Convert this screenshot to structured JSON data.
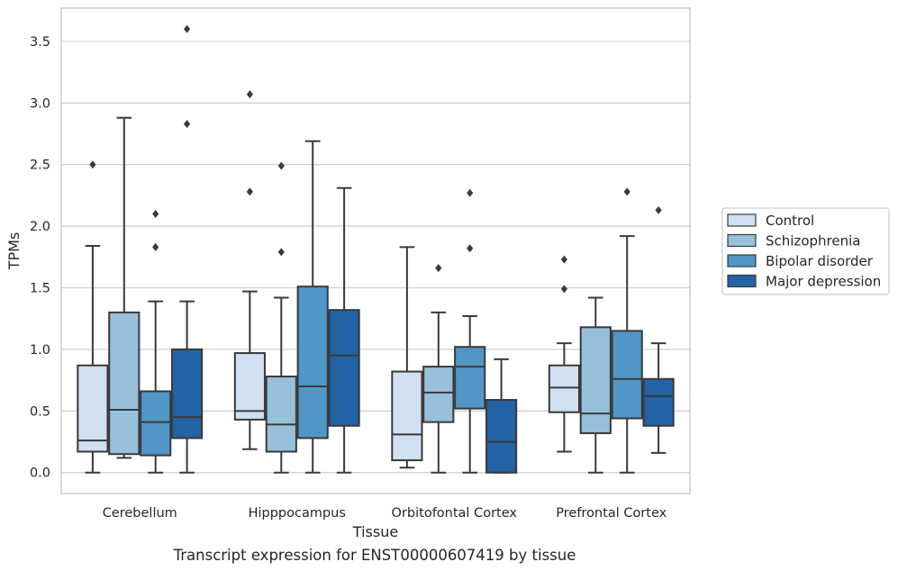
{
  "chart_data": {
    "type": "box",
    "xlabel": "Tissue",
    "ylabel": "TPMs",
    "caption": "Transcript expression for ENST00000607419 by tissue",
    "ylim": [
      -0.17,
      3.77
    ],
    "yticks": [
      "0.0",
      "0.5",
      "1.0",
      "1.5",
      "2.0",
      "2.5",
      "3.0",
      "3.5"
    ],
    "grid": "horizontal",
    "legend_position": "right",
    "categories": [
      "Cerebellum",
      "Hipppocampus",
      "Orbitofontal Cortex",
      "Prefrontal Cortex"
    ],
    "series": [
      {
        "name": "Control",
        "color": "#d1e0f0",
        "boxes": [
          {
            "whislo": 0.0,
            "q1": 0.17,
            "med": 0.26,
            "q3": 0.87,
            "whishi": 1.84,
            "fliers": [
              2.5
            ]
          },
          {
            "whislo": 0.19,
            "q1": 0.43,
            "med": 0.5,
            "q3": 0.97,
            "whishi": 1.47,
            "fliers": [
              2.28,
              3.07
            ]
          },
          {
            "whislo": 0.04,
            "q1": 0.1,
            "med": 0.31,
            "q3": 0.82,
            "whishi": 1.83,
            "fliers": []
          },
          {
            "whislo": 0.17,
            "q1": 0.49,
            "med": 0.69,
            "q3": 0.87,
            "whishi": 1.05,
            "fliers": [
              1.49,
              1.73
            ]
          }
        ]
      },
      {
        "name": "Schizophrenia",
        "color": "#97c0da",
        "boxes": [
          {
            "whislo": 0.12,
            "q1": 0.15,
            "med": 0.51,
            "q3": 1.3,
            "whishi": 2.88,
            "fliers": []
          },
          {
            "whislo": 0.0,
            "q1": 0.17,
            "med": 0.39,
            "q3": 0.78,
            "whishi": 1.42,
            "fliers": [
              1.79,
              2.49
            ]
          },
          {
            "whislo": 0.0,
            "q1": 0.41,
            "med": 0.65,
            "q3": 0.86,
            "whishi": 1.3,
            "fliers": [
              1.66
            ]
          },
          {
            "whislo": 0.0,
            "q1": 0.32,
            "med": 0.48,
            "q3": 1.18,
            "whishi": 1.42,
            "fliers": []
          }
        ]
      },
      {
        "name": "Bipolar disorder",
        "color": "#5096c6",
        "boxes": [
          {
            "whislo": 0.0,
            "q1": 0.14,
            "med": 0.41,
            "q3": 0.66,
            "whishi": 1.39,
            "fliers": [
              1.83,
              2.1
            ]
          },
          {
            "whislo": 0.0,
            "q1": 0.28,
            "med": 0.7,
            "q3": 1.51,
            "whishi": 2.69,
            "fliers": []
          },
          {
            "whislo": 0.0,
            "q1": 0.52,
            "med": 0.86,
            "q3": 1.02,
            "whishi": 1.27,
            "fliers": [
              1.82,
              2.27
            ]
          },
          {
            "whislo": 0.0,
            "q1": 0.44,
            "med": 0.76,
            "q3": 1.15,
            "whishi": 1.92,
            "fliers": [
              2.28
            ]
          }
        ]
      },
      {
        "name": "Major depression",
        "color": "#2163a4",
        "boxes": [
          {
            "whislo": 0.0,
            "q1": 0.28,
            "med": 0.45,
            "q3": 1.0,
            "whishi": 1.39,
            "fliers": [
              2.83,
              3.6
            ]
          },
          {
            "whislo": 0.0,
            "q1": 0.38,
            "med": 0.95,
            "q3": 1.32,
            "whishi": 2.31,
            "fliers": []
          },
          {
            "whislo": 0.0,
            "q1": 0.0,
            "med": 0.25,
            "q3": 0.59,
            "whishi": 0.92,
            "fliers": []
          },
          {
            "whislo": 0.16,
            "q1": 0.38,
            "med": 0.62,
            "q3": 0.76,
            "whishi": 1.05,
            "fliers": [
              2.13
            ]
          }
        ]
      }
    ]
  }
}
